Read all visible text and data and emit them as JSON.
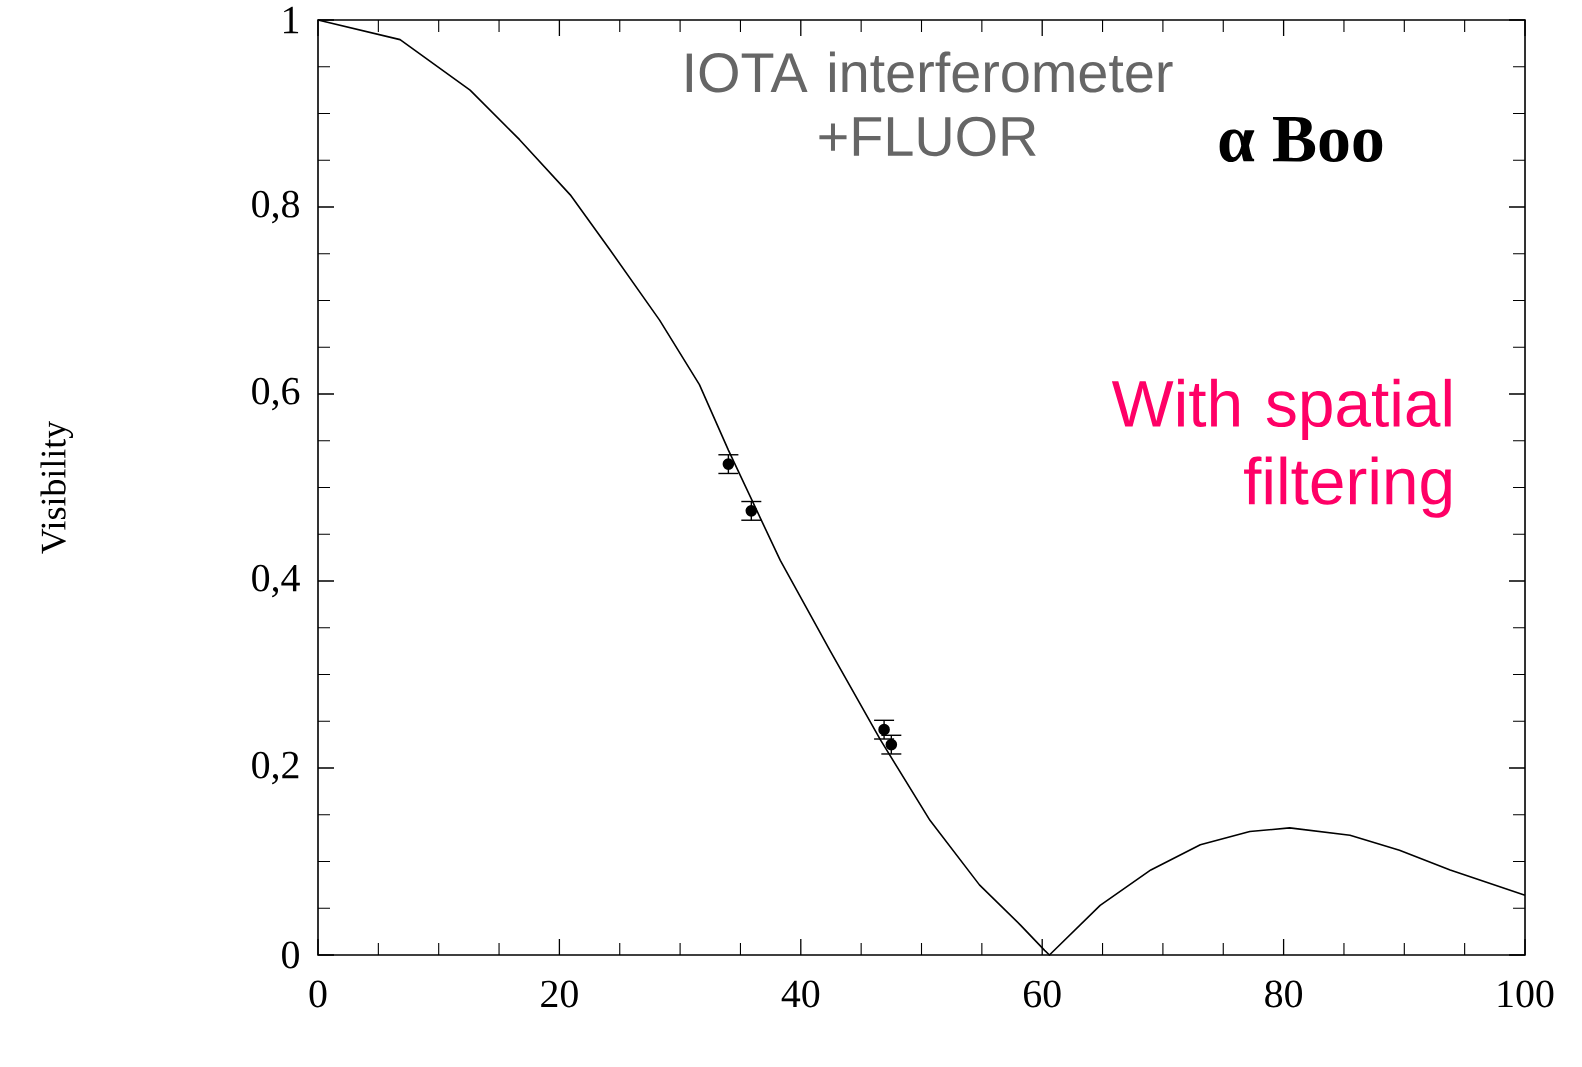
{
  "chart_data": {
    "type": "line",
    "ylabel": "Visibility",
    "xlim": [
      0,
      100
    ],
    "ylim": [
      0,
      1
    ],
    "xticks": [
      0,
      20,
      40,
      60,
      80,
      100
    ],
    "yticks": [
      0,
      {
        "value": 0.2,
        "label": "0,2"
      },
      {
        "value": 0.4,
        "label": "0,4"
      },
      {
        "value": 0.6,
        "label": "0,6"
      },
      {
        "value": 0.8,
        "label": "0,8"
      },
      1
    ],
    "annotations": [
      "IOTA interferometer +FLUOR",
      "α Boo",
      "With spatial filtering"
    ],
    "series": [
      {
        "color": "#000000",
        "marker": "none",
        "line_style": "solid",
        "x": [
          0,
          6.8,
          12.6,
          16.7,
          20.9,
          24.2,
          28.3,
          31.6,
          34,
          38.3,
          42.4,
          46.6,
          50.7,
          54.8,
          58.2,
          60.2,
          60.6,
          64.8,
          69,
          73.1,
          77.2,
          80.5,
          85.5,
          89.6,
          93.8,
          100
        ],
        "values": [
          1.0,
          0.979,
          0.925,
          0.872,
          0.813,
          0.754,
          0.679,
          0.61,
          0.54,
          0.422,
          0.326,
          0.23,
          0.144,
          0.075,
          0.032,
          0.005,
          0,
          0.053,
          0.091,
          0.118,
          0.132,
          0.136,
          0.128,
          0.112,
          0.091,
          0.064
        ]
      },
      {
        "type": "scatter",
        "color": "#000000",
        "marker": "circle",
        "x": [
          34,
          35.9,
          46.9,
          47.5
        ],
        "values": [
          0.525,
          0.475,
          0.241,
          0.225
        ],
        "errors": [
          0.01,
          0.01,
          0.01,
          0.01
        ]
      }
    ]
  }
}
